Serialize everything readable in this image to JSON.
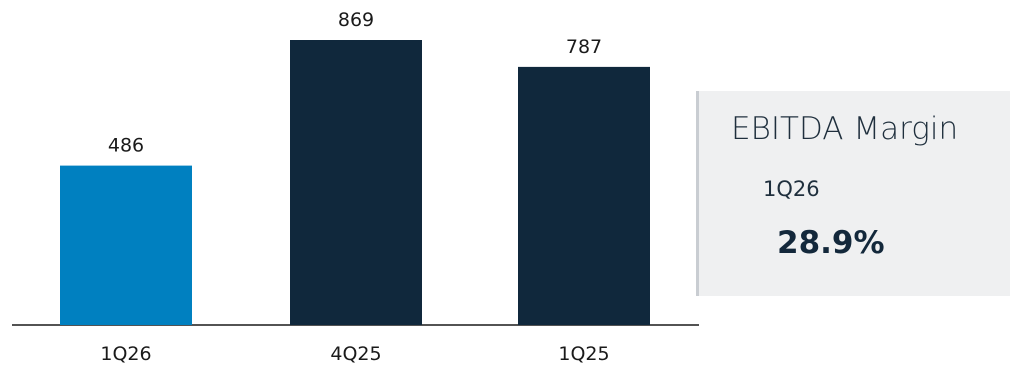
{
  "chart_data": {
    "type": "bar",
    "categories": [
      "1Q26",
      "4Q25",
      "1Q25"
    ],
    "values": [
      486,
      869,
      787
    ],
    "data_labels": [
      "486",
      "869",
      "787"
    ],
    "bar_colors": [
      "#0080c0",
      "#10283c",
      "#10283c"
    ],
    "title": "",
    "xlabel": "",
    "ylabel": "",
    "ylim": [
      0,
      869
    ],
    "grid": false,
    "legend": "none"
  },
  "margin_panel": {
    "title": "EBITDA Margin",
    "period": "1Q26",
    "value": "28.9%"
  },
  "colors": {
    "accent": "#0080c0",
    "dark": "#10283c",
    "panel_bg": "#eff0f1",
    "axis": "#1a1a1a"
  }
}
